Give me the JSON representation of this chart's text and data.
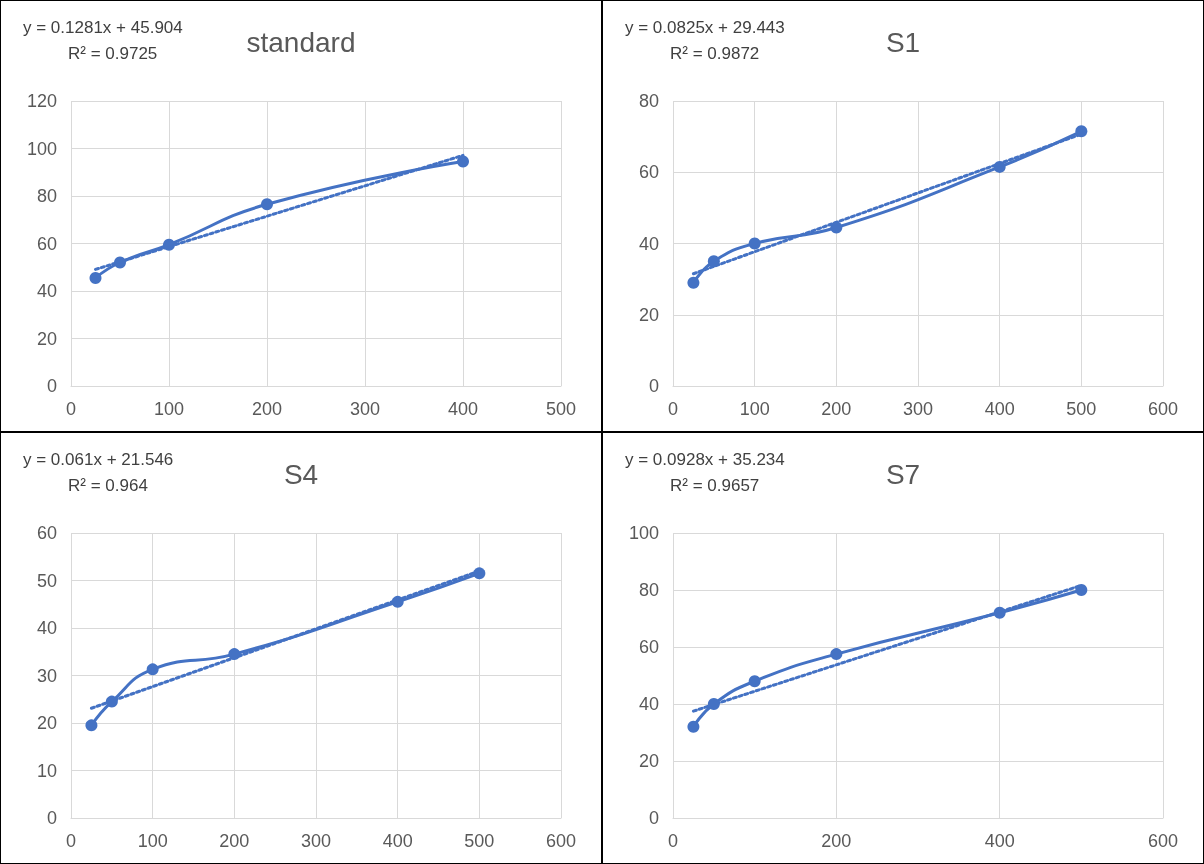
{
  "chart_data": [
    {
      "type": "line",
      "title": "standard",
      "x": [
        25,
        50,
        100,
        200,
        400
      ],
      "xlim": [
        0,
        500
      ],
      "xticks": [
        0,
        100,
        200,
        300,
        400,
        500
      ],
      "ylim": [
        0,
        120
      ],
      "yticks": [
        0,
        20,
        40,
        60,
        80,
        100,
        120
      ],
      "grid": true,
      "annotations": [
        "y = 0.1281x + 45.904",
        "R² = 0.9725"
      ],
      "series": [
        {
          "color": "#4472c4",
          "values": [
            45.5,
            52,
            59.5,
            76.5,
            94.5
          ],
          "marker": "circle",
          "line_style": "solid"
        },
        {
          "color": "#4472c4",
          "x": [
            25,
            400
          ],
          "values": [
            49.1,
            97.1
          ],
          "marker": "none",
          "line_style": "dotted"
        }
      ]
    },
    {
      "type": "line",
      "title": "S1",
      "x": [
        25,
        50,
        100,
        200,
        400,
        500
      ],
      "xlim": [
        0,
        600
      ],
      "xticks": [
        0,
        100,
        200,
        300,
        400,
        500,
        600
      ],
      "ylim": [
        0,
        80
      ],
      "yticks": [
        0,
        20,
        40,
        60,
        80
      ],
      "grid": true,
      "annotations": [
        "y = 0.0825x + 29.443",
        "R² = 0.9872"
      ],
      "series": [
        {
          "color": "#4472c4",
          "values": [
            29,
            35,
            40,
            44.5,
            61.5,
            71.5
          ],
          "marker": "circle",
          "line_style": "solid"
        },
        {
          "color": "#4472c4",
          "x": [
            25,
            500
          ],
          "values": [
            31.5,
            70.7
          ],
          "marker": "none",
          "line_style": "dotted"
        }
      ]
    },
    {
      "type": "line",
      "title": "S4",
      "x": [
        25,
        50,
        100,
        200,
        400,
        500
      ],
      "xlim": [
        0,
        600
      ],
      "xticks": [
        0,
        100,
        200,
        300,
        400,
        500,
        600
      ],
      "ylim": [
        0,
        60
      ],
      "yticks": [
        0,
        10,
        20,
        30,
        40,
        50,
        60
      ],
      "grid": true,
      "annotations": [
        "y = 0.061x + 21.546",
        "R² = 0.964"
      ],
      "series": [
        {
          "color": "#4472c4",
          "values": [
            19.5,
            24.5,
            31.3,
            34.5,
            45.5,
            51.5
          ],
          "marker": "circle",
          "line_style": "solid"
        },
        {
          "color": "#4472c4",
          "x": [
            25,
            500
          ],
          "values": [
            23.1,
            52.0
          ],
          "marker": "none",
          "line_style": "dotted"
        }
      ]
    },
    {
      "type": "line",
      "title": "S7",
      "x": [
        25,
        50,
        100,
        200,
        400,
        500
      ],
      "xlim": [
        0,
        600
      ],
      "xticks": [
        0,
        200,
        400,
        600
      ],
      "ylim": [
        0,
        100
      ],
      "yticks": [
        0,
        20,
        40,
        60,
        80,
        100
      ],
      "grid": true,
      "annotations": [
        "y = 0.0928x + 35.234",
        "R² = 0.9657"
      ],
      "series": [
        {
          "color": "#4472c4",
          "values": [
            32,
            40,
            48,
            57.5,
            72,
            80
          ],
          "marker": "circle",
          "line_style": "solid"
        },
        {
          "color": "#4472c4",
          "x": [
            25,
            500
          ],
          "values": [
            37.5,
            81.6
          ],
          "marker": "none",
          "line_style": "dotted"
        }
      ]
    }
  ]
}
